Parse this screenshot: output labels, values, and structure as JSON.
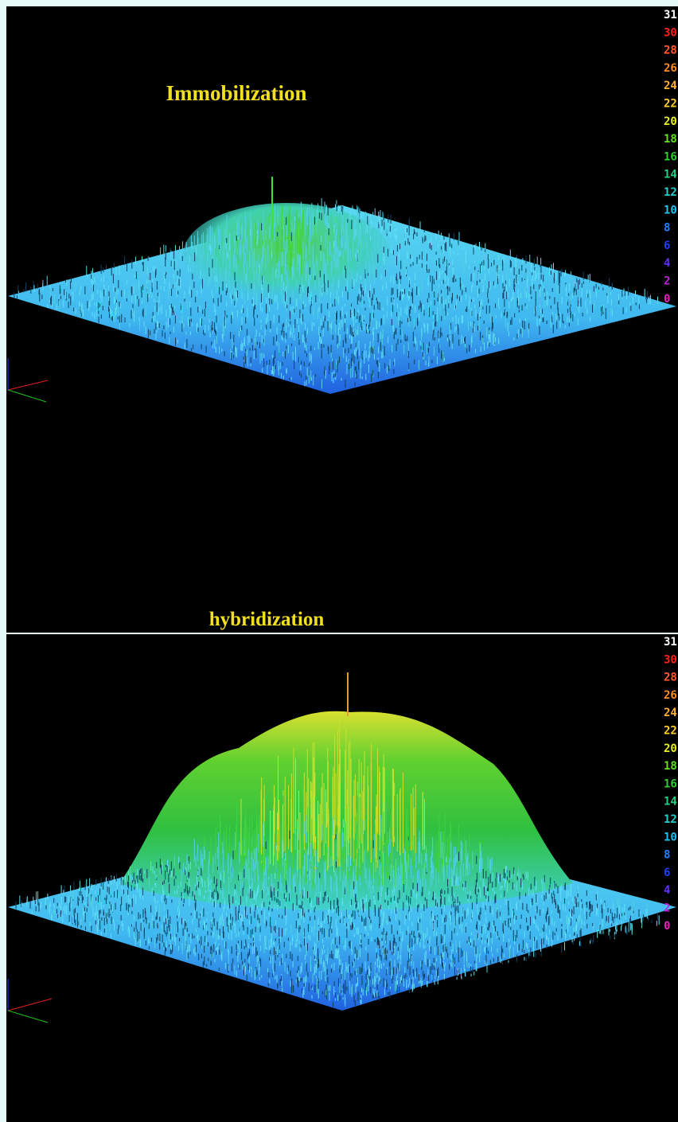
{
  "panels": [
    {
      "title": "Immobilization",
      "scale": [
        {
          "label": "31",
          "color": "#ffffff"
        },
        {
          "label": "30",
          "color": "#ff2020"
        },
        {
          "label": "28",
          "color": "#ff5a30"
        },
        {
          "label": "26",
          "color": "#ff8c20"
        },
        {
          "label": "24",
          "color": "#ffb030"
        },
        {
          "label": "22",
          "color": "#ffd020"
        },
        {
          "label": "20",
          "color": "#e8f020"
        },
        {
          "label": "18",
          "color": "#60e020"
        },
        {
          "label": "16",
          "color": "#30d030"
        },
        {
          "label": "14",
          "color": "#20d080"
        },
        {
          "label": "12",
          "color": "#20d0d0"
        },
        {
          "label": "10",
          "color": "#20c0f0"
        },
        {
          "label": "8",
          "color": "#2080ff"
        },
        {
          "label": "6",
          "color": "#2040ff"
        },
        {
          "label": "4",
          "color": "#6030ff"
        },
        {
          "label": "2",
          "color": "#c020e0"
        },
        {
          "label": "0",
          "color": "#e020c0"
        }
      ]
    },
    {
      "title": "hybridization",
      "scale": [
        {
          "label": "31",
          "color": "#ffffff"
        },
        {
          "label": "30",
          "color": "#ff2020"
        },
        {
          "label": "28",
          "color": "#ff5a30"
        },
        {
          "label": "26",
          "color": "#ff8c20"
        },
        {
          "label": "24",
          "color": "#ffb030"
        },
        {
          "label": "22",
          "color": "#ffd020"
        },
        {
          "label": "20",
          "color": "#e8f020"
        },
        {
          "label": "18",
          "color": "#60e020"
        },
        {
          "label": "16",
          "color": "#30d030"
        },
        {
          "label": "14",
          "color": "#20d080"
        },
        {
          "label": "12",
          "color": "#20d0d0"
        },
        {
          "label": "10",
          "color": "#20c0f0"
        },
        {
          "label": "8",
          "color": "#2080ff"
        },
        {
          "label": "6",
          "color": "#2040ff"
        },
        {
          "label": "4",
          "color": "#6030ff"
        },
        {
          "label": "2",
          "color": "#c020e0"
        },
        {
          "label": "0",
          "color": "#e020c0"
        }
      ]
    }
  ]
}
